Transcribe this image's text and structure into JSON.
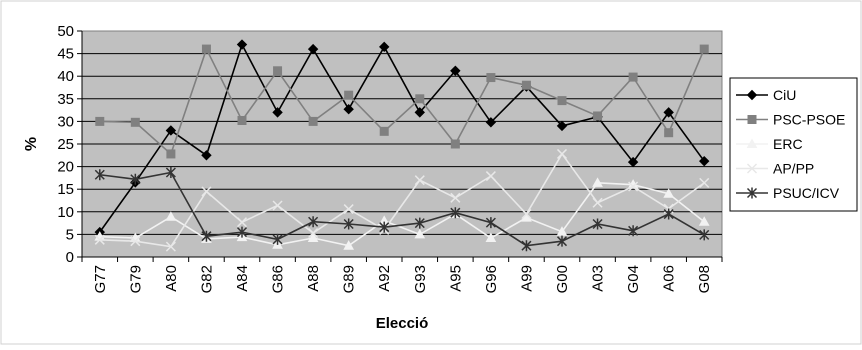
{
  "chart_data": {
    "type": "line",
    "title": "",
    "xlabel": "Elecció",
    "ylabel": "%",
    "ylim": [
      0,
      50
    ],
    "ytick_step": 5,
    "grid": true,
    "legend_position": "right",
    "plot_background": "#c0c0c0",
    "categories": [
      "G77",
      "G79",
      "A80",
      "G82",
      "A84",
      "G86",
      "A88",
      "G89",
      "A92",
      "G93",
      "A95",
      "G96",
      "A99",
      "G00",
      "A03",
      "G04",
      "A06",
      "G08"
    ],
    "series": [
      {
        "name": "CiU",
        "color": "#000000",
        "marker": "diamond",
        "values": [
          5.5,
          16.5,
          28,
          22.5,
          47,
          32,
          46,
          32.7,
          46.5,
          32,
          41.2,
          29.8,
          37.7,
          29,
          31,
          21,
          32,
          21.2
        ]
      },
      {
        "name": "PSC-PSOE",
        "color": "#808080",
        "marker": "square",
        "values": [
          30,
          29.8,
          22.8,
          46,
          30.2,
          41.2,
          30,
          35.8,
          27.8,
          35,
          25,
          39.7,
          38,
          34.6,
          31.2,
          39.8,
          27.5,
          46
        ]
      },
      {
        "name": "ERC",
        "color": "#f2f2f2",
        "marker": "triangle",
        "values": [
          4.5,
          4.2,
          8.9,
          4,
          4.4,
          2.7,
          4.2,
          2.5,
          8,
          5,
          9.5,
          4.2,
          8.7,
          5.6,
          16.4,
          16,
          14,
          7.8
        ]
      },
      {
        "name": "AP/PP",
        "color": "#e8e8e8",
        "marker": "x",
        "values": [
          3.8,
          3.5,
          2.3,
          14.5,
          7.7,
          11.4,
          5.3,
          10.6,
          6,
          17,
          13.1,
          17.9,
          9.5,
          22.8,
          12,
          15.6,
          10.7,
          16.4
        ]
      },
      {
        "name": "PSUC/ICV",
        "color": "#333333",
        "marker": "star",
        "values": [
          18.2,
          17.2,
          18.7,
          4.6,
          5.5,
          3.9,
          7.8,
          7.3,
          6.6,
          7.5,
          9.8,
          7.6,
          2.5,
          3.5,
          7.3,
          5.8,
          9.5,
          4.9
        ]
      }
    ]
  }
}
